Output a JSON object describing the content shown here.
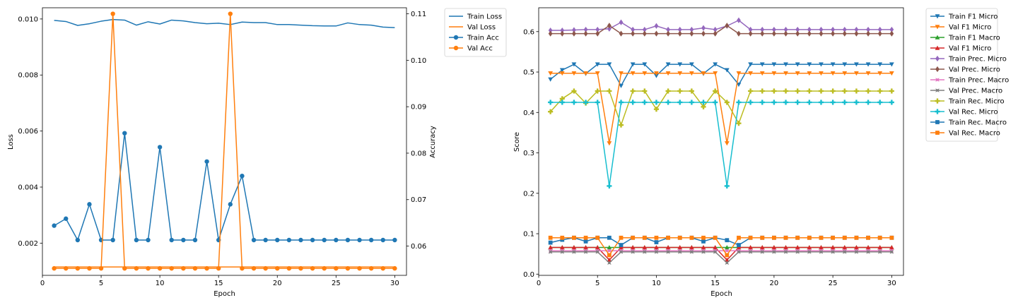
{
  "chart_data": [
    {
      "type": "line",
      "xlabel": "Epoch",
      "ylabel": "Loss",
      "y2label": "Accuracy",
      "x": [
        1,
        2,
        3,
        4,
        5,
        6,
        7,
        8,
        9,
        10,
        11,
        12,
        13,
        14,
        15,
        16,
        17,
        18,
        19,
        20,
        21,
        22,
        23,
        24,
        25,
        26,
        27,
        28,
        29,
        30
      ],
      "xticks": [
        0,
        5,
        10,
        15,
        20,
        25,
        30
      ],
      "xlim": [
        0.0,
        31.0
      ],
      "ylim": [
        0.00085,
        0.0104
      ],
      "yticks": [
        0.002,
        0.004,
        0.006,
        0.008,
        0.01
      ],
      "ytick_labels": [
        "0.002",
        "0.004",
        "0.006",
        "0.008",
        "0.010"
      ],
      "y2lim": [
        0.0537,
        0.1113
      ],
      "y2ticks": [
        0.06,
        0.07,
        0.08,
        0.09,
        0.1,
        0.11
      ],
      "y2tick_labels": [
        "0.06",
        "0.07",
        "0.08",
        "0.09",
        "0.10",
        "0.11"
      ],
      "legend_position": "outside-right",
      "series": [
        {
          "name": "Train Loss",
          "axis": "left",
          "marker": "none",
          "color": "#1f77b4",
          "values": [
            0.00995,
            0.00991,
            0.00977,
            0.00983,
            0.00992,
            0.00998,
            0.00996,
            0.00978,
            0.0099,
            0.00982,
            0.00996,
            0.00993,
            0.00987,
            0.00983,
            0.00985,
            0.0098,
            0.00989,
            0.00987,
            0.00987,
            0.0098,
            0.0098,
            0.00978,
            0.00976,
            0.00975,
            0.00975,
            0.00986,
            0.0098,
            0.00978,
            0.00971,
            0.00969
          ]
        },
        {
          "name": "Val Loss",
          "axis": "left",
          "marker": "none",
          "color": "#ff7f0e",
          "values": [
            0.00115,
            0.00115,
            0.00115,
            0.00115,
            0.00115,
            0.00115,
            0.00115,
            0.00115,
            0.00115,
            0.00115,
            0.00115,
            0.00115,
            0.00115,
            0.00115,
            0.00115,
            0.00115,
            0.00115,
            0.00115,
            0.00115,
            0.00115,
            0.00115,
            0.00115,
            0.00115,
            0.00115,
            0.00115,
            0.00115,
            0.00115,
            0.00115,
            0.00115,
            0.00115
          ]
        },
        {
          "name": "Train Acc",
          "axis": "right",
          "marker": "circle",
          "color": "#1f77b4",
          "values": [
            0.0644,
            0.0659,
            0.0613,
            0.069,
            0.0613,
            0.0613,
            0.0843,
            0.0613,
            0.0613,
            0.0813,
            0.0613,
            0.0613,
            0.0613,
            0.0782,
            0.0613,
            0.069,
            0.0751,
            0.0613,
            0.0613,
            0.0613,
            0.0613,
            0.0613,
            0.0613,
            0.0613,
            0.0613,
            0.0613,
            0.0613,
            0.0613,
            0.0613,
            0.0613
          ]
        },
        {
          "name": "Val Acc",
          "axis": "right",
          "marker": "circle",
          "color": "#ff7f0e",
          "values": [
            0.0552,
            0.0552,
            0.0552,
            0.0552,
            0.0552,
            0.11,
            0.0552,
            0.0552,
            0.0552,
            0.0552,
            0.0552,
            0.0552,
            0.0552,
            0.0552,
            0.0552,
            0.11,
            0.0552,
            0.0552,
            0.0552,
            0.0552,
            0.0552,
            0.0552,
            0.0552,
            0.0552,
            0.0552,
            0.0552,
            0.0552,
            0.0552,
            0.0552,
            0.0552
          ]
        }
      ]
    },
    {
      "type": "line",
      "xlabel": "Epoch",
      "ylabel": "Score",
      "x": [
        1,
        2,
        3,
        4,
        5,
        6,
        7,
        8,
        9,
        10,
        11,
        12,
        13,
        14,
        15,
        16,
        17,
        18,
        19,
        20,
        21,
        22,
        23,
        24,
        25,
        26,
        27,
        28,
        29,
        30
      ],
      "xticks": [
        0,
        5,
        10,
        15,
        20,
        25,
        30
      ],
      "xlim": [
        0.0,
        31.0
      ],
      "ylim": [
        -0.003,
        0.659
      ],
      "yticks": [
        0.0,
        0.1,
        0.2,
        0.3,
        0.4,
        0.5,
        0.6
      ],
      "ytick_labels": [
        "0.0",
        "0.1",
        "0.2",
        "0.3",
        "0.4",
        "0.5",
        "0.6"
      ],
      "legend_position": "outside-right",
      "series": [
        {
          "name": "Train F1 Micro",
          "marker": "triangle-down",
          "color": "#1f77b4",
          "values": [
            0.482,
            0.505,
            0.519,
            0.496,
            0.519,
            0.519,
            0.466,
            0.519,
            0.519,
            0.491,
            0.519,
            0.519,
            0.519,
            0.496,
            0.519,
            0.505,
            0.469,
            0.519,
            0.519,
            0.519,
            0.519,
            0.519,
            0.519,
            0.519,
            0.519,
            0.519,
            0.519,
            0.519,
            0.519,
            0.519
          ]
        },
        {
          "name": "Val F1 Micro",
          "marker": "triangle-down",
          "color": "#ff7f0e",
          "values": [
            0.497,
            0.497,
            0.497,
            0.497,
            0.497,
            0.324,
            0.497,
            0.497,
            0.497,
            0.497,
            0.497,
            0.497,
            0.497,
            0.497,
            0.497,
            0.324,
            0.497,
            0.497,
            0.497,
            0.497,
            0.497,
            0.497,
            0.497,
            0.497,
            0.497,
            0.497,
            0.497,
            0.497,
            0.497,
            0.497
          ]
        },
        {
          "name": "Train F1 Macro",
          "marker": "triangle-up",
          "color": "#2ca02c",
          "values": [
            0.066,
            0.066,
            0.066,
            0.066,
            0.066,
            0.066,
            0.066,
            0.066,
            0.066,
            0.066,
            0.066,
            0.066,
            0.066,
            0.066,
            0.066,
            0.066,
            0.066,
            0.066,
            0.066,
            0.066,
            0.066,
            0.066,
            0.066,
            0.066,
            0.066,
            0.066,
            0.066,
            0.066,
            0.066,
            0.066
          ]
        },
        {
          "name": "Val F1 Micro",
          "marker": "triangle-up",
          "color": "#d62728",
          "values": [
            0.066,
            0.066,
            0.066,
            0.066,
            0.066,
            0.035,
            0.066,
            0.066,
            0.066,
            0.066,
            0.066,
            0.066,
            0.066,
            0.066,
            0.066,
            0.035,
            0.066,
            0.066,
            0.066,
            0.066,
            0.066,
            0.066,
            0.066,
            0.066,
            0.066,
            0.066,
            0.066,
            0.066,
            0.066,
            0.066
          ]
        },
        {
          "name": "Train Prec. Micro",
          "marker": "diamond",
          "color": "#9467bd",
          "values": [
            0.603,
            0.603,
            0.604,
            0.605,
            0.605,
            0.607,
            0.623,
            0.605,
            0.605,
            0.614,
            0.605,
            0.605,
            0.605,
            0.609,
            0.605,
            0.614,
            0.628,
            0.605,
            0.605,
            0.605,
            0.605,
            0.605,
            0.605,
            0.605,
            0.605,
            0.605,
            0.605,
            0.605,
            0.605,
            0.605
          ]
        },
        {
          "name": "Val Prec. Micro",
          "marker": "diamond",
          "color": "#8c564b",
          "values": [
            0.595,
            0.595,
            0.595,
            0.595,
            0.595,
            0.615,
            0.595,
            0.595,
            0.595,
            0.595,
            0.595,
            0.595,
            0.595,
            0.595,
            0.595,
            0.615,
            0.595,
            0.595,
            0.595,
            0.595,
            0.595,
            0.595,
            0.595,
            0.595,
            0.595,
            0.595,
            0.595,
            0.595,
            0.595,
            0.595
          ]
        },
        {
          "name": "Train Prec. Macro",
          "marker": "star",
          "color": "#e377c2",
          "values": [
            0.058,
            0.058,
            0.058,
            0.058,
            0.058,
            0.058,
            0.058,
            0.058,
            0.058,
            0.058,
            0.058,
            0.058,
            0.058,
            0.058,
            0.058,
            0.058,
            0.058,
            0.058,
            0.058,
            0.058,
            0.058,
            0.058,
            0.058,
            0.058,
            0.058,
            0.058,
            0.058,
            0.058,
            0.058,
            0.058
          ]
        },
        {
          "name": "Val Prec. Macro",
          "marker": "star",
          "color": "#7f7f7f",
          "values": [
            0.055,
            0.055,
            0.055,
            0.055,
            0.055,
            0.028,
            0.055,
            0.055,
            0.055,
            0.055,
            0.055,
            0.055,
            0.055,
            0.055,
            0.055,
            0.028,
            0.055,
            0.055,
            0.055,
            0.055,
            0.055,
            0.055,
            0.055,
            0.055,
            0.055,
            0.055,
            0.055,
            0.055,
            0.055,
            0.055
          ]
        },
        {
          "name": "Train Rec. Micro",
          "marker": "plus",
          "color": "#bcbd22",
          "values": [
            0.402,
            0.434,
            0.453,
            0.423,
            0.453,
            0.453,
            0.369,
            0.453,
            0.453,
            0.408,
            0.453,
            0.453,
            0.453,
            0.414,
            0.453,
            0.425,
            0.373,
            0.453,
            0.453,
            0.453,
            0.453,
            0.453,
            0.453,
            0.453,
            0.453,
            0.453,
            0.453,
            0.453,
            0.453,
            0.453
          ]
        },
        {
          "name": "Val Rec. Micro",
          "marker": "plus",
          "color": "#17becf",
          "values": [
            0.425,
            0.425,
            0.425,
            0.425,
            0.425,
            0.218,
            0.425,
            0.425,
            0.425,
            0.425,
            0.425,
            0.425,
            0.425,
            0.425,
            0.425,
            0.218,
            0.425,
            0.425,
            0.425,
            0.425,
            0.425,
            0.425,
            0.425,
            0.425,
            0.425,
            0.425,
            0.425,
            0.425,
            0.425,
            0.425
          ]
        },
        {
          "name": "Train Rec. Macro",
          "marker": "square",
          "color": "#1f77b4",
          "values": [
            0.078,
            0.085,
            0.09,
            0.081,
            0.09,
            0.09,
            0.072,
            0.09,
            0.09,
            0.079,
            0.09,
            0.09,
            0.09,
            0.081,
            0.09,
            0.084,
            0.072,
            0.09,
            0.09,
            0.09,
            0.09,
            0.09,
            0.09,
            0.09,
            0.09,
            0.09,
            0.09,
            0.09,
            0.09,
            0.09
          ]
        },
        {
          "name": "Val Rec. Macro",
          "marker": "square",
          "color": "#ff7f0e",
          "values": [
            0.09,
            0.09,
            0.09,
            0.09,
            0.09,
            0.047,
            0.09,
            0.09,
            0.09,
            0.09,
            0.09,
            0.09,
            0.09,
            0.09,
            0.09,
            0.047,
            0.09,
            0.09,
            0.09,
            0.09,
            0.09,
            0.09,
            0.09,
            0.09,
            0.09,
            0.09,
            0.09,
            0.09,
            0.09,
            0.09
          ]
        }
      ]
    }
  ]
}
